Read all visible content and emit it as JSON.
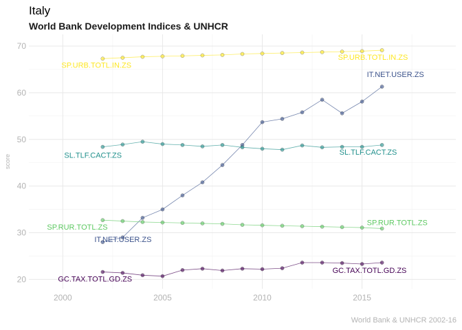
{
  "header": {
    "title": "Italy",
    "subtitle": "World Bank Development Indices & UNHCR"
  },
  "caption": "World Bank & UNHCR 2002-16",
  "chart_data": {
    "type": "line",
    "title": "Italy",
    "subtitle": "World Bank Development Indices & UNHCR",
    "xlabel": "",
    "ylabel": "score",
    "xlim": [
      1998.3,
      2019.7
    ],
    "ylim": [
      18,
      72.5
    ],
    "x_ticks": [
      2000,
      2005,
      2010,
      2015
    ],
    "y_ticks": [
      20,
      30,
      40,
      50,
      60,
      70
    ],
    "grid": true,
    "legend": "none",
    "x": [
      2002,
      2003,
      2004,
      2005,
      2006,
      2007,
      2008,
      2009,
      2010,
      2011,
      2012,
      2013,
      2014,
      2015,
      2016
    ],
    "series": [
      {
        "name": "SP.URB.TOTL.IN.ZS",
        "color": "#fde725",
        "values": [
          67.3,
          67.5,
          67.7,
          67.8,
          67.9,
          68.0,
          68.1,
          68.3,
          68.4,
          68.5,
          68.6,
          68.7,
          68.8,
          68.9,
          69.1
        ],
        "start_label": "SP.URB.TOTL.IN.ZS",
        "end_label": "SP.URB.TOTL.IN.ZS"
      },
      {
        "name": "IT.NET.USER.ZS",
        "color": "#3b528b",
        "values": [
          28.0,
          29.0,
          33.2,
          35.0,
          38.0,
          40.8,
          44.5,
          48.8,
          53.7,
          54.4,
          55.8,
          58.5,
          55.6,
          58.1,
          61.3
        ],
        "start_label": "IT.NET.USER.ZS",
        "end_label": "IT.NET.USER.ZS"
      },
      {
        "name": "SL.TLF.CACT.ZS",
        "color": "#21908c",
        "values": [
          48.4,
          48.9,
          49.5,
          49.0,
          48.8,
          48.5,
          48.8,
          48.3,
          48.0,
          47.8,
          48.7,
          48.3,
          48.4,
          48.4,
          48.8
        ],
        "start_label": "SL.TLF.CACT.ZS",
        "end_label": "SL.TLF.CACT.ZS"
      },
      {
        "name": "SP.RUR.TOTL.ZS",
        "color": "#5ec962",
        "values": [
          32.7,
          32.5,
          32.3,
          32.2,
          32.1,
          32.0,
          31.9,
          31.7,
          31.6,
          31.5,
          31.4,
          31.3,
          31.2,
          31.1,
          30.9
        ],
        "start_label": "SP.RUR.TOTL.ZS",
        "end_label": "SP.RUR.TOTL.ZS"
      },
      {
        "name": "GC.TAX.TOTL.GD.ZS",
        "color": "#440154",
        "values": [
          21.6,
          21.4,
          20.9,
          20.7,
          22.0,
          22.3,
          21.9,
          22.3,
          22.2,
          22.4,
          23.6,
          23.6,
          23.5,
          23.3,
          23.6
        ],
        "start_label": "GC.TAX.TOTL.GD.ZS",
        "end_label": "GC.TAX.TOTL.GD.ZS"
      }
    ]
  }
}
